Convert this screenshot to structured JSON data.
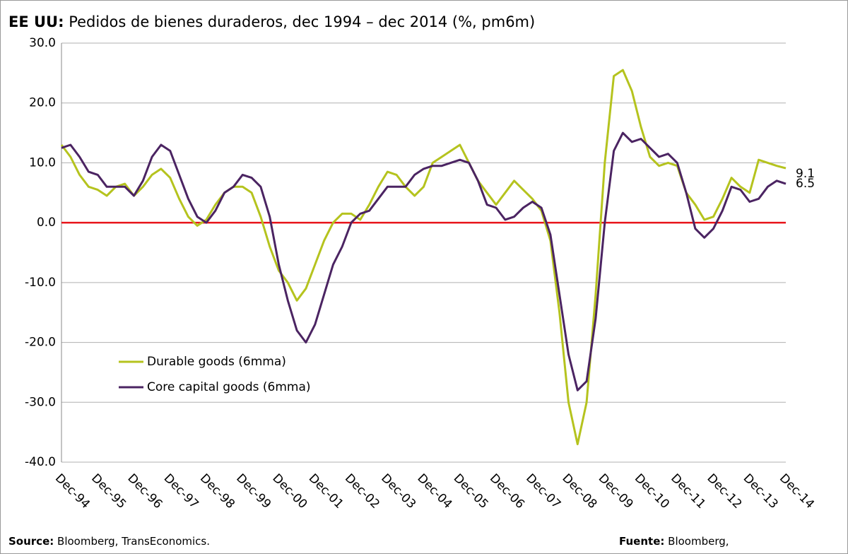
{
  "chart_data": {
    "type": "line",
    "title_prefix": "EE UU:",
    "title": "Pedidos de bienes duraderos, dec 1994 –  dec 2014 (%, pm6m)",
    "categories": [
      "Dec-94",
      null,
      null,
      null,
      "Dec-95",
      null,
      null,
      null,
      "Dec-96",
      null,
      null,
      null,
      "Dec-97",
      null,
      null,
      null,
      "Dec-98",
      null,
      null,
      null,
      "Dec-99",
      null,
      null,
      null,
      "Dec-00",
      null,
      null,
      null,
      "Dec-01",
      null,
      null,
      null,
      "Dec-02",
      null,
      null,
      null,
      "Dec-03",
      null,
      null,
      null,
      "Dec-04",
      null,
      null,
      null,
      "Dec-05",
      null,
      null,
      null,
      "Dec-06",
      null,
      null,
      null,
      "Dec-07",
      null,
      null,
      null,
      "Dec-08",
      null,
      null,
      null,
      "Dec-09",
      null,
      null,
      null,
      "Dec-10",
      null,
      null,
      null,
      "Dec-11",
      null,
      null,
      null,
      "Dec-12",
      null,
      null,
      null,
      "Dec-13",
      null,
      null,
      null,
      "Dec-14"
    ],
    "series": [
      {
        "name": "Durable goods (6mma)",
        "color": "#b5c31e",
        "values": [
          13,
          11,
          8,
          6,
          5.5,
          4.5,
          6,
          6.5,
          4.5,
          6,
          8,
          9,
          7.5,
          4,
          1,
          -0.5,
          0.5,
          3,
          5,
          6,
          6,
          5,
          1,
          -4,
          -8,
          -10,
          -13,
          -11,
          -7,
          -3,
          0,
          1.5,
          1.5,
          0.5,
          3,
          6,
          8.5,
          8,
          6,
          4.5,
          6,
          10,
          11,
          12,
          13,
          10,
          7,
          5,
          3,
          5,
          7,
          5.5,
          4,
          2,
          -3,
          -15,
          -30,
          -37,
          -30,
          -12,
          10,
          24.5,
          25.5,
          22,
          16,
          11,
          9.5,
          10,
          9.5,
          5,
          3,
          0.5,
          1,
          4,
          7.5,
          6,
          5,
          10.5,
          10,
          9.5,
          9.1
        ]
      },
      {
        "name": "Core capital goods (6mma)",
        "color": "#4b2462",
        "values": [
          12.5,
          13,
          11,
          8.5,
          8,
          6,
          6,
          6,
          4.5,
          7,
          11,
          13,
          12,
          8,
          4,
          1,
          0,
          2,
          5,
          6,
          8,
          7.5,
          6,
          1,
          -7,
          -13,
          -18,
          -20,
          -17,
          -12,
          -7,
          -4,
          0,
          1.5,
          2,
          4,
          6,
          6,
          6,
          8,
          9,
          9.5,
          9.5,
          10,
          10.5,
          10,
          7,
          3,
          2.5,
          0.5,
          1,
          2.5,
          3.5,
          2.5,
          -2,
          -12,
          -22,
          -28,
          -26.5,
          -16,
          0,
          12,
          15,
          13.5,
          14,
          12.5,
          11,
          11.5,
          10,
          5,
          -1,
          -2.5,
          -1,
          2,
          6,
          5.5,
          3.5,
          4,
          6,
          7,
          6.5
        ]
      }
    ],
    "ylim": [
      -40,
      30
    ],
    "yticks": [
      {
        "value": -40,
        "label": "-40.0"
      },
      {
        "value": -30,
        "label": "-30.0"
      },
      {
        "value": -20,
        "label": "-20.0"
      },
      {
        "value": -10,
        "label": "-10.0"
      },
      {
        "value": 0,
        "label": "0.0"
      },
      {
        "value": 10,
        "label": "10.0"
      },
      {
        "value": 20,
        "label": "20.0"
      },
      {
        "value": 30,
        "label": "30.0"
      }
    ],
    "grid": true,
    "reference_line": {
      "value": 0,
      "color": "#e8141a"
    },
    "legend": "left",
    "source_label": "Source:",
    "source": "Bloomberg, TransEconomics.",
    "fuente_label": "Fuente:",
    "fuente": "Bloomberg,"
  }
}
